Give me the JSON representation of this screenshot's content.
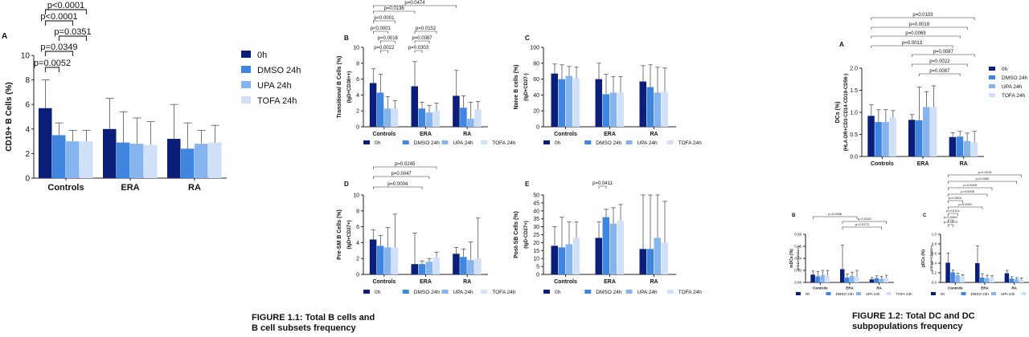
{
  "colors": {
    "s0h": "#0b1f7a",
    "sDMSO": "#3f86e0",
    "sUPA": "#86b4ee",
    "sTOFA": "#cfe0f8"
  },
  "captions": {
    "fig11": [
      "FIGURE 1.1: Total B cells and",
      "B cell subsets frequency"
    ],
    "fig12": [
      "FIGURE 1.2: Total DC and DC",
      "subpopulations frequency"
    ]
  },
  "chart_data": [
    {
      "panel": "A",
      "type": "bar",
      "ylabel": "CD19+ B Cells (%)",
      "ylim": [
        0,
        10
      ],
      "yticks": [
        0,
        2,
        4,
        6,
        8,
        10
      ],
      "categories": [
        "Controls",
        "ERA",
        "RA"
      ],
      "series": [
        {
          "name": "0h",
          "values": [
            5.7,
            4.0,
            3.2
          ],
          "errors": [
            2.3,
            2.5,
            2.8
          ]
        },
        {
          "name": "DMSO 24h",
          "values": [
            3.5,
            2.9,
            2.4
          ],
          "errors": [
            1.0,
            2.5,
            2.1
          ]
        },
        {
          "name": "UPA 24h",
          "values": [
            3.0,
            2.8,
            2.8
          ],
          "errors": [
            0.9,
            2.1,
            1.1
          ]
        },
        {
          "name": "TOFA 24h",
          "values": [
            3.0,
            2.7,
            2.9
          ],
          "errors": [
            0.9,
            1.9,
            1.4
          ]
        }
      ],
      "annotations": [
        "p<0.0001",
        "p<0.0001",
        "p=0.0351",
        "p=0.0349",
        "p=0.0052"
      ]
    },
    {
      "panel": "B",
      "type": "bar",
      "ylabel": "Transitional B Cells (%)",
      "ylabel2": "(IgD+CD38++)",
      "ylim": [
        0,
        10
      ],
      "yticks": [
        0,
        2,
        4,
        6,
        8,
        10
      ],
      "categories": [
        "Controls",
        "ERA",
        "RA"
      ],
      "series": [
        {
          "name": "0h",
          "values": [
            5.5,
            5.1,
            3.9
          ],
          "errors": [
            1.8,
            3.1,
            3.2
          ]
        },
        {
          "name": "DMSO 24h",
          "values": [
            4.3,
            2.3,
            2.4
          ],
          "errors": [
            2.3,
            0.8,
            1.5
          ]
        },
        {
          "name": "UPA 24h",
          "values": [
            2.3,
            1.8,
            1.0
          ],
          "errors": [
            1.5,
            0.9,
            2.1
          ]
        },
        {
          "name": "TOFA 24h",
          "values": [
            2.3,
            2.0,
            2.2
          ],
          "errors": [
            1.0,
            1.0,
            1.0
          ]
        }
      ],
      "annotations": [
        "p=0.0474",
        "p=0.0136",
        "p<0.0001",
        "p<0.0001",
        "p=0.0016",
        "p=0.0022",
        "p=0.0152",
        "p=0.0087",
        "p=0.0303"
      ]
    },
    {
      "panel": "C",
      "type": "bar",
      "ylabel": "Naive B cells (%)",
      "ylabel2": "(IgD+CD27-)",
      "ylim": [
        0,
        100
      ],
      "yticks": [
        0,
        20,
        40,
        60,
        80,
        100
      ],
      "categories": [
        "Controls",
        "ERA",
        "RA"
      ],
      "series": [
        {
          "name": "0h",
          "values": [
            67,
            60,
            57
          ],
          "errors": [
            12,
            20,
            20
          ]
        },
        {
          "name": "DMSO 24h",
          "values": [
            60,
            41,
            50
          ],
          "errors": [
            18,
            25,
            28
          ]
        },
        {
          "name": "UPA 24h",
          "values": [
            64,
            43,
            43
          ],
          "errors": [
            12,
            20,
            32
          ]
        },
        {
          "name": "TOFA 24h",
          "values": [
            61,
            43,
            44
          ],
          "errors": [
            14,
            20,
            30
          ]
        }
      ]
    },
    {
      "panel": "D",
      "type": "bar",
      "ylabel": "Pre-SM B Cells (%)",
      "ylabel2": "(IgD+CD27+)",
      "ylim": [
        0,
        10
      ],
      "yticks": [
        0,
        2,
        4,
        6,
        8,
        10
      ],
      "categories": [
        "Controls",
        "ERA",
        "RA"
      ],
      "series": [
        {
          "name": "0h",
          "values": [
            4.4,
            1.3,
            2.6
          ],
          "errors": [
            1.2,
            3.9,
            0.8
          ]
        },
        {
          "name": "DMSO 24h",
          "values": [
            3.6,
            1.3,
            2.2
          ],
          "errors": [
            1.3,
            0.4,
            1.0
          ]
        },
        {
          "name": "UPA 24h",
          "values": [
            3.4,
            1.6,
            1.8
          ],
          "errors": [
            2.5,
            0.4,
            2.3
          ]
        },
        {
          "name": "TOFA 24h",
          "values": [
            3.4,
            2.1,
            2.0
          ],
          "errors": [
            4.2,
            0.7,
            5.1
          ]
        }
      ],
      "annotations": [
        "p=0.0245",
        "p=0.0047",
        "p=0.0004"
      ]
    },
    {
      "panel": "E",
      "type": "bar",
      "ylabel": "Post-SB Cells (%)",
      "ylabel2": "(IgD-CD27+)",
      "ylim": [
        0,
        50
      ],
      "yticks": [
        0,
        5,
        10,
        15,
        20,
        25,
        30,
        35,
        40,
        45,
        50
      ],
      "categories": [
        "Controls",
        "ERA",
        "RA"
      ],
      "series": [
        {
          "name": "0h",
          "values": [
            18,
            23,
            16
          ],
          "errors": [
            12,
            10,
            34
          ]
        },
        {
          "name": "DMSO 24h",
          "values": [
            17,
            36,
            16
          ],
          "errors": [
            19,
            5,
            34
          ]
        },
        {
          "name": "UPA 24h",
          "values": [
            19,
            32,
            23
          ],
          "errors": [
            14,
            10,
            27
          ]
        },
        {
          "name": "TOFA 24h",
          "values": [
            23,
            34,
            20
          ],
          "errors": [
            10,
            10,
            26
          ]
        }
      ],
      "annotations": [
        "p=0.0411"
      ]
    },
    {
      "panel": "A",
      "type": "bar",
      "ylabel": "DCs (%)",
      "ylabel2": "(HLA-DR+CD3-CD14-CD19-CD56-)",
      "ylim": [
        0,
        2.0
      ],
      "yticks": [
        0.0,
        0.5,
        1.0,
        1.5,
        2.0
      ],
      "categories": [
        "Controls",
        "ERA",
        "RA"
      ],
      "series": [
        {
          "name": "0h",
          "values": [
            0.92,
            0.83,
            0.44
          ],
          "errors": [
            0.25,
            0.12,
            0.1
          ]
        },
        {
          "name": "DMSO 24h",
          "values": [
            0.78,
            0.82,
            0.45
          ],
          "errors": [
            0.28,
            0.75,
            0.12
          ]
        },
        {
          "name": "UPA 24h",
          "values": [
            0.78,
            1.12,
            0.35
          ],
          "errors": [
            0.28,
            0.35,
            0.18
          ]
        },
        {
          "name": "TOFA 24h",
          "values": [
            0.88,
            1.12,
            0.32
          ],
          "errors": [
            0.16,
            0.48,
            0.25
          ]
        }
      ],
      "annotations": [
        "p=0.0103",
        "p=0.0019",
        "p=0.0069",
        "p=0.0013",
        "p=0.0087",
        "p=0.0022",
        "p=0.0087"
      ]
    },
    {
      "panel": "B",
      "type": "bar",
      "ylabel": "mDCs (%)",
      "ylabel2": "(CD1c+CD11c+)",
      "ylim": [
        0,
        0.08
      ],
      "yticks": [
        0.0,
        0.02,
        0.04,
        0.06,
        0.08
      ],
      "categories": [
        "Controls",
        "ERA",
        "RA"
      ],
      "series": [
        {
          "name": "0h",
          "values": [
            0.013,
            0.022,
            0.005
          ],
          "errors": [
            0.006,
            0.04,
            0.003
          ]
        },
        {
          "name": "DMSO 24h",
          "values": [
            0.01,
            0.008,
            0.007
          ],
          "errors": [
            0.008,
            0.006,
            0.004
          ]
        },
        {
          "name": "UPA 24h",
          "values": [
            0.012,
            0.011,
            0.006
          ],
          "errors": [
            0.008,
            0.006,
            0.004
          ]
        },
        {
          "name": "TOFA 24h",
          "values": [
            0.011,
            0.01,
            0.008
          ],
          "errors": [
            0.009,
            0.01,
            0.004
          ]
        }
      ],
      "annotations": [
        "p=0.0306",
        "p=0.0152",
        "p=0.0173"
      ]
    },
    {
      "panel": "C",
      "type": "bar",
      "ylabel": "pDCs (%)",
      "ylabel2": "(CD123+CD303+)",
      "ylim": [
        0,
        1.0
      ],
      "yticks": [
        0.0,
        0.2,
        0.4,
        0.6,
        0.8,
        1.0
      ],
      "categories": [
        "Controls",
        "ERA",
        "RA"
      ],
      "series": [
        {
          "name": "0h",
          "values": [
            0.41,
            0.4,
            0.19
          ],
          "errors": [
            0.2,
            0.36,
            0.06
          ]
        },
        {
          "name": "DMSO 24h",
          "values": [
            0.21,
            0.1,
            0.08
          ],
          "errors": [
            0.05,
            0.08,
            0.04
          ]
        },
        {
          "name": "UPA 24h",
          "values": [
            0.15,
            0.09,
            0.07
          ],
          "errors": [
            0.04,
            0.06,
            0.03
          ]
        },
        {
          "name": "TOFA 24h",
          "values": [
            0.13,
            0.09,
            0.06
          ],
          "errors": [
            0.03,
            0.05,
            0.03
          ]
        }
      ],
      "annotations": [
        "p=0.0210",
        "p=0.0069",
        "p=0.0009",
        "p=0.0005",
        "p=0.0001",
        "p<0.0001",
        "p=0.0121",
        "p=0.0264",
        "p=0.0073"
      ]
    }
  ]
}
